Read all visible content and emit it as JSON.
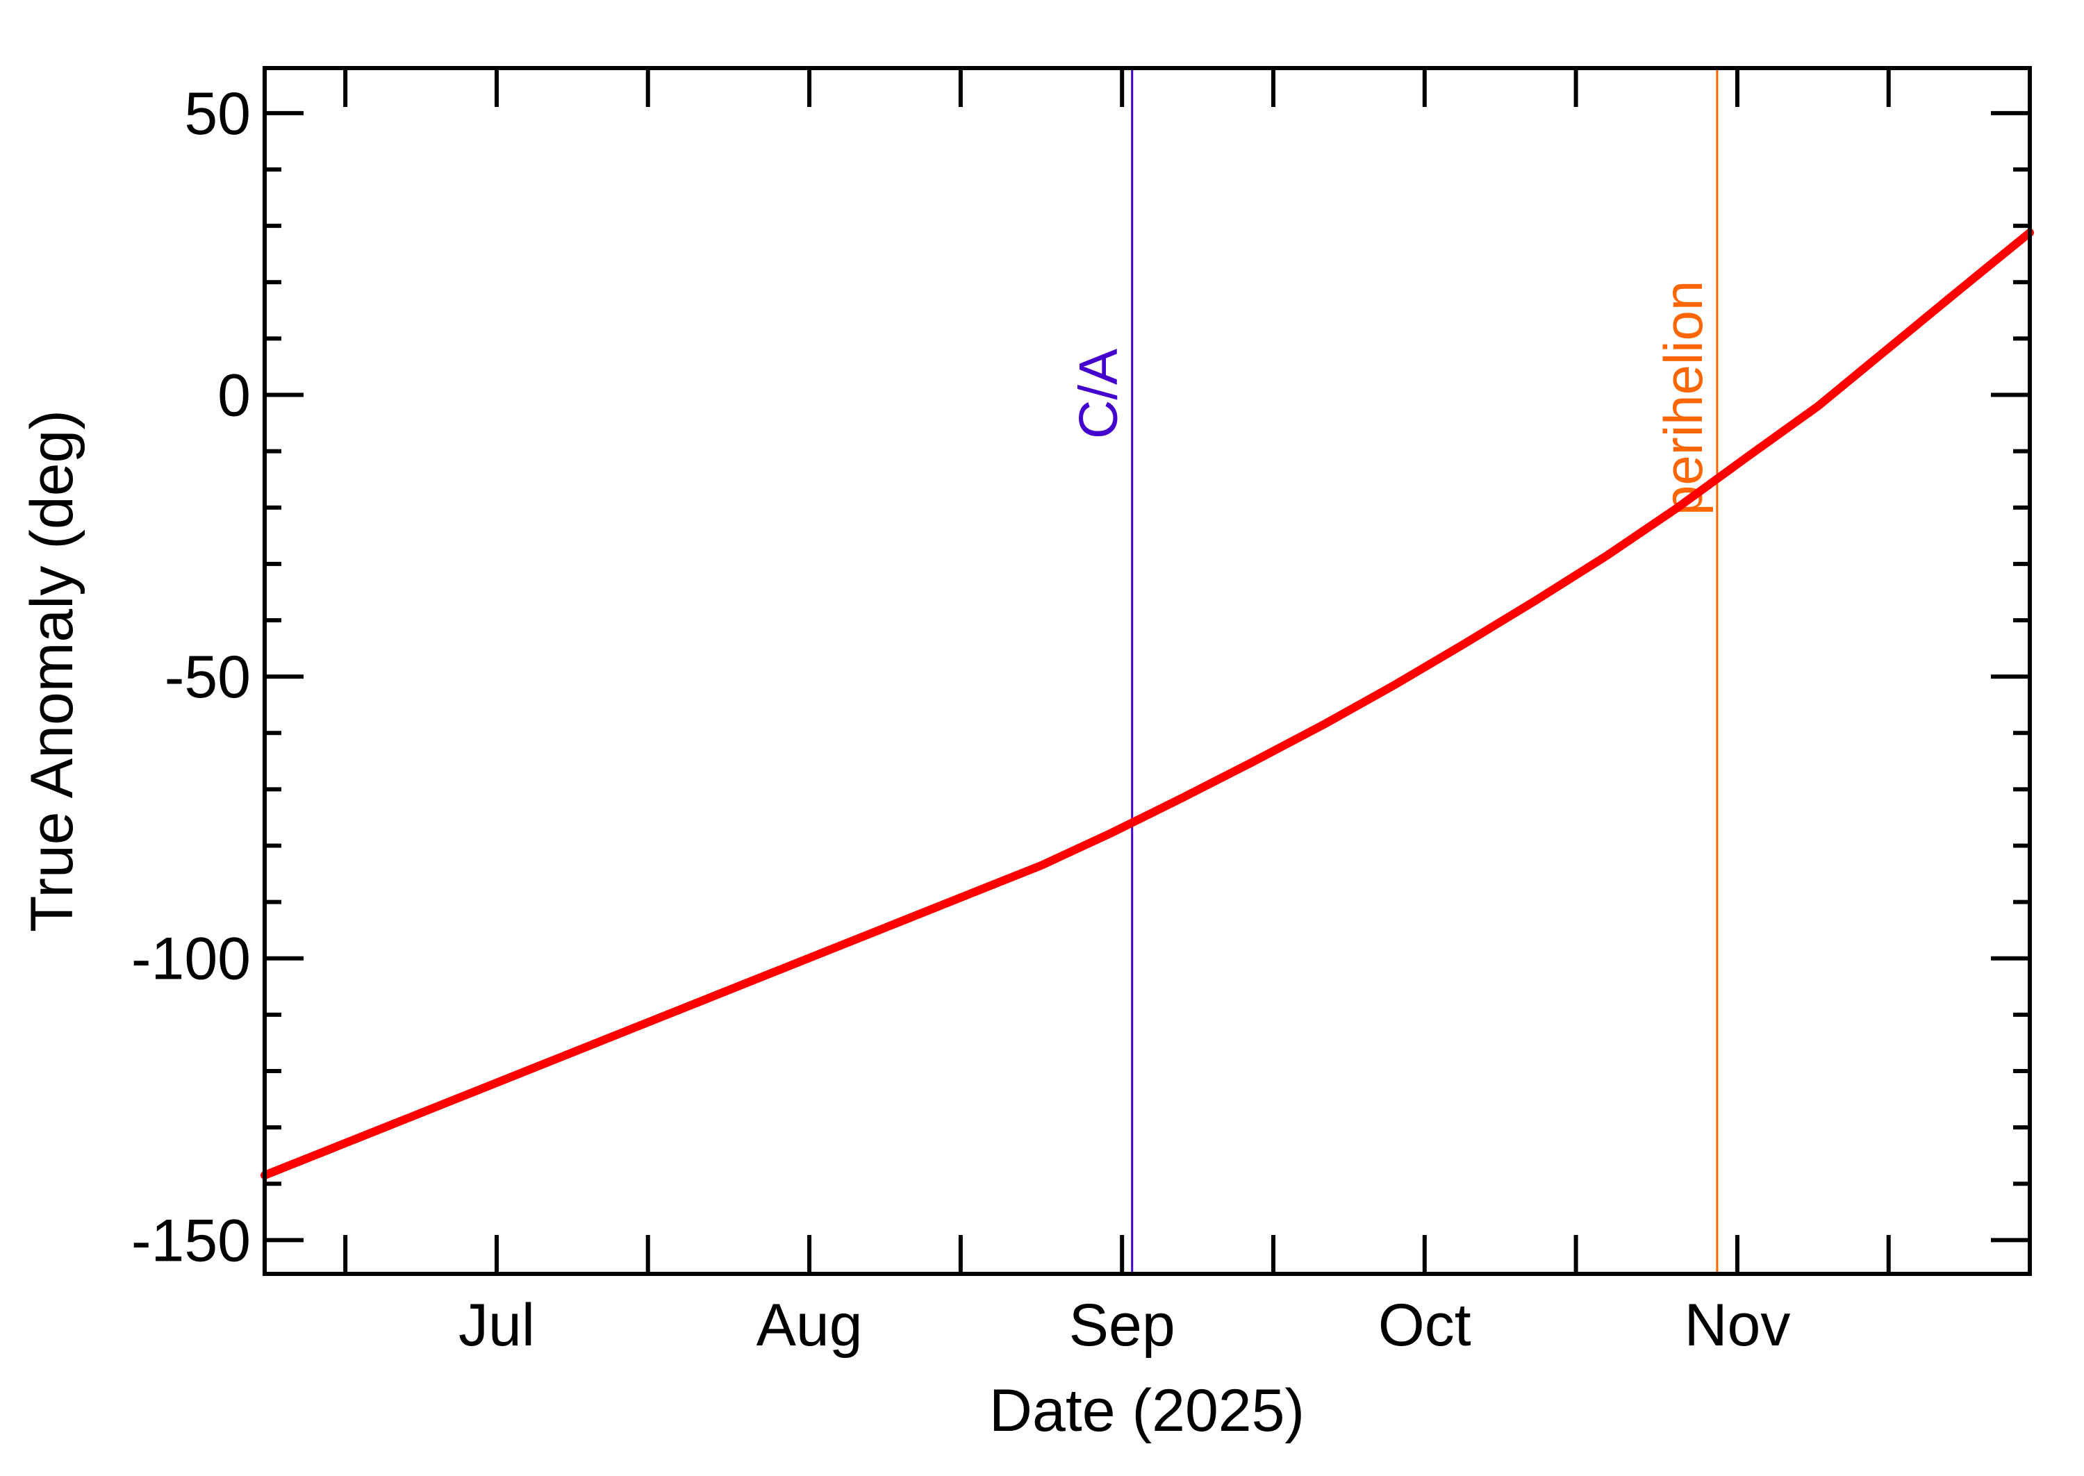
{
  "chart_data": {
    "type": "line",
    "xlabel": "Date (2025)",
    "ylabel": "True Anomaly (deg)",
    "xlim": [
      "2025-06-08",
      "2025-11-30"
    ],
    "ylim": [
      -156,
      58
    ],
    "x_ticks": [
      {
        "date": "2025-07-01",
        "label": "Jul"
      },
      {
        "date": "2025-08-01",
        "label": "Aug"
      },
      {
        "date": "2025-09-01",
        "label": "Sep"
      },
      {
        "date": "2025-10-01",
        "label": "Oct"
      },
      {
        "date": "2025-11-01",
        "label": "Nov"
      }
    ],
    "y_ticks": [
      {
        "value": 50,
        "label": "50"
      },
      {
        "value": 0,
        "label": "0"
      },
      {
        "value": -50,
        "label": "-50"
      },
      {
        "value": -100,
        "label": "-100"
      },
      {
        "value": -150,
        "label": "-150"
      }
    ],
    "y_minor_step": 10,
    "grid": false,
    "series": [
      {
        "color": "#ff0000",
        "x": [
          "2025-06-08",
          "2025-06-15",
          "2025-06-22",
          "2025-06-29",
          "2025-07-06",
          "2025-07-13",
          "2025-07-20",
          "2025-07-27",
          "2025-08-03",
          "2025-08-10",
          "2025-08-17",
          "2025-08-24",
          "2025-08-31",
          "2025-09-07",
          "2025-09-14",
          "2025-09-21",
          "2025-09-28",
          "2025-10-05",
          "2025-10-12",
          "2025-10-19",
          "2025-10-26",
          "2025-11-02",
          "2025-11-09",
          "2025-11-16",
          "2025-11-23",
          "2025-11-30"
        ],
        "y": [
          -138.5,
          -133.5,
          -128.5,
          -123.5,
          -118.5,
          -113.5,
          -108.5,
          -103.5,
          -98.5,
          -93.5,
          -88.5,
          -83.5,
          -77.7,
          -71.5,
          -65.1,
          -58.5,
          -51.5,
          -44.1,
          -36.5,
          -28.6,
          -20.1,
          -11.0,
          -2.0,
          8.3,
          18.6,
          28.8
        ]
      }
    ],
    "events": [
      {
        "label": "C/A",
        "date": "2025-09-02",
        "color": "#4400cc"
      },
      {
        "label": "perihelion",
        "date": "2025-10-30",
        "color": "#ff6600"
      }
    ]
  }
}
